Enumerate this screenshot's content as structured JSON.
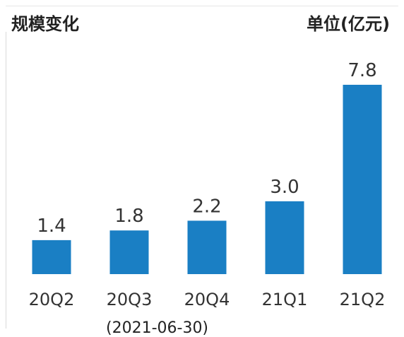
{
  "header": {
    "title": "规模变化",
    "unit": "单位(亿元)"
  },
  "footnote": "(2021-06-30)",
  "colors": {
    "bar": "#1a7fc4",
    "text": "#333333"
  },
  "chart_data": {
    "type": "bar",
    "title": "规模变化",
    "ylabel": "单位(亿元)",
    "xlabel": "",
    "categories": [
      "20Q2",
      "20Q3",
      "20Q4",
      "21Q1",
      "21Q2"
    ],
    "values": [
      1.4,
      1.8,
      2.2,
      3.0,
      7.8
    ],
    "value_labels": [
      "1.4",
      "1.8",
      "2.2",
      "3.0",
      "7.8"
    ],
    "ylim": [
      0,
      7.8
    ],
    "grid": false,
    "legend": "none"
  }
}
